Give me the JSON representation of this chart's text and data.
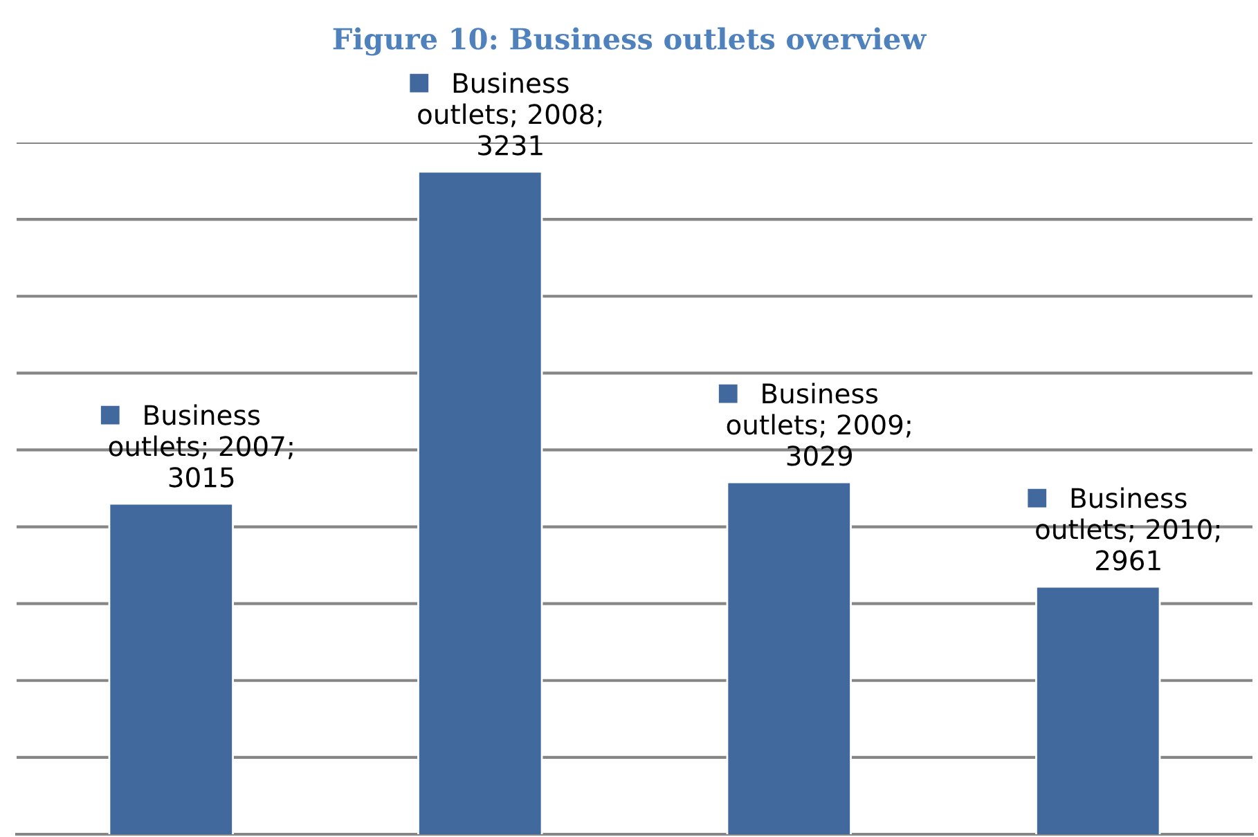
{
  "chart_data": {
    "type": "bar",
    "title": "Figure 10: Business outlets overview",
    "categories": [
      null,
      null,
      null,
      null
    ],
    "series": [
      {
        "color": "#41699d",
        "values": [
          3015,
          3231,
          3029,
          2961
        ],
        "value_labels": [
          "Business outlets; 2007; 3015",
          "Business outlets; 2008; 3231",
          "Business outlets; 2009; 3029",
          "Business outlets; 2010; 2961"
        ]
      }
    ],
    "ylim": [
      2800,
      3250
    ],
    "yticks": [
      {
        "value": 2850,
        "label": null
      },
      {
        "value": 2900,
        "label": null
      },
      {
        "value": 2950,
        "label": null
      },
      {
        "value": 3000,
        "label": null
      },
      {
        "value": 3050,
        "label": null
      },
      {
        "value": 3100,
        "label": null
      },
      {
        "value": 3150,
        "label": null
      },
      {
        "value": 3200,
        "label": null
      },
      {
        "value": 3250,
        "label": null
      }
    ],
    "grid": "y"
  }
}
